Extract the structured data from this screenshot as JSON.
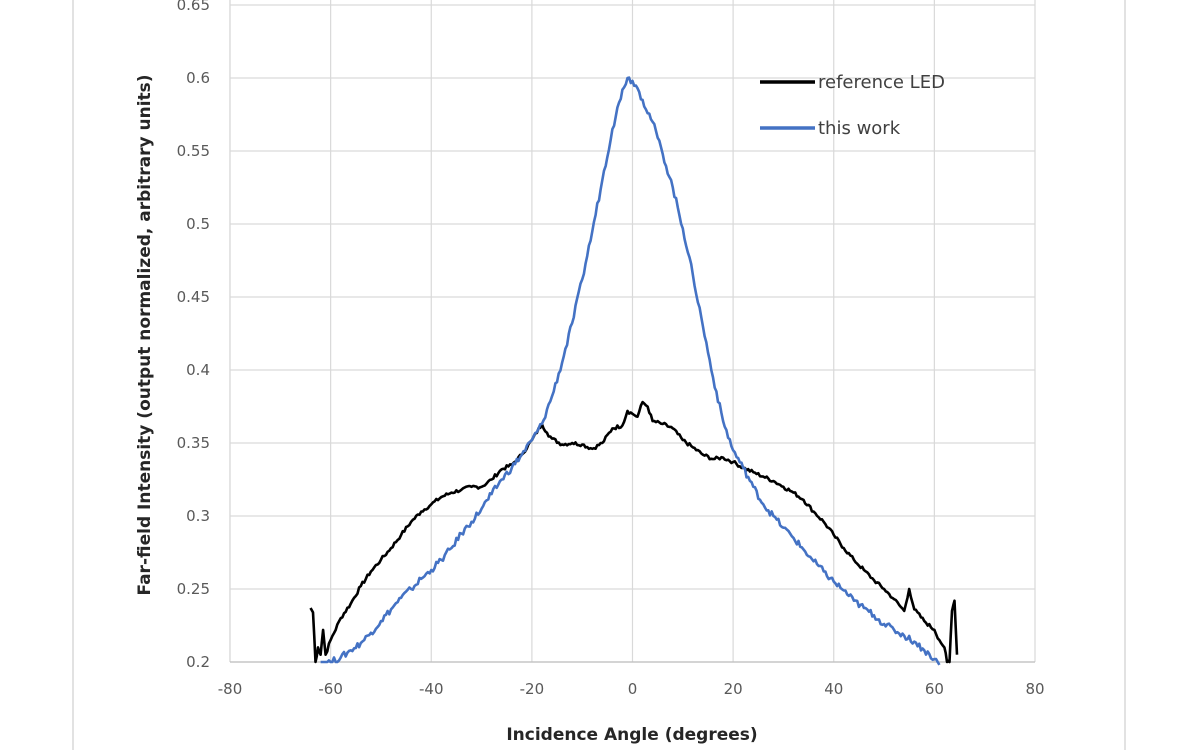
{
  "chart_data": {
    "type": "line",
    "title": "",
    "xlabel": "Incidence Angle (degrees)",
    "ylabel": "Far-field Intensity (output normalized, arbitrary units)",
    "xlim": [
      -80,
      80
    ],
    "ylim": [
      0.2,
      0.65
    ],
    "xticks": [
      "-80",
      "-60",
      "-40",
      "-20",
      "0",
      "20",
      "40",
      "60",
      "80"
    ],
    "yticks": [
      "0.2",
      "0.25",
      "0.3",
      "0.35",
      "0.4",
      "0.45",
      "0.5",
      "0.55",
      "0.6",
      "0.65"
    ],
    "grid": true,
    "legend_position": "top-right",
    "series": [
      {
        "name": "reference LED",
        "color": "#000000",
        "x": [
          -64,
          -63.5,
          -63,
          -62.5,
          -62,
          -61.5,
          -61,
          -60,
          -58,
          -56,
          -54,
          -52,
          -50,
          -48,
          -46,
          -44,
          -42,
          -40,
          -38,
          -36,
          -34,
          -32,
          -30,
          -28,
          -26,
          -24,
          -22,
          -20,
          -18,
          -17,
          -16,
          -14,
          -12,
          -10,
          -8,
          -6,
          -4,
          -2,
          -1,
          0,
          1,
          2,
          3,
          4,
          6,
          8,
          10,
          12,
          14,
          16,
          18,
          20,
          22,
          24,
          26,
          28,
          30,
          32,
          34,
          36,
          38,
          40,
          42,
          44,
          46,
          48,
          50,
          52,
          54,
          55,
          56,
          58,
          60,
          61,
          62,
          62.5,
          63,
          63.5,
          64,
          64.5
        ],
        "y": [
          0.237,
          0.234,
          0.2,
          0.21,
          0.205,
          0.222,
          0.205,
          0.215,
          0.23,
          0.24,
          0.252,
          0.262,
          0.27,
          0.278,
          0.287,
          0.296,
          0.303,
          0.308,
          0.313,
          0.316,
          0.318,
          0.32,
          0.32,
          0.325,
          0.332,
          0.335,
          0.342,
          0.352,
          0.363,
          0.357,
          0.353,
          0.349,
          0.35,
          0.349,
          0.346,
          0.35,
          0.36,
          0.362,
          0.372,
          0.37,
          0.368,
          0.378,
          0.375,
          0.365,
          0.363,
          0.36,
          0.352,
          0.347,
          0.342,
          0.339,
          0.34,
          0.337,
          0.333,
          0.33,
          0.327,
          0.324,
          0.32,
          0.316,
          0.311,
          0.303,
          0.296,
          0.287,
          0.278,
          0.27,
          0.263,
          0.256,
          0.25,
          0.243,
          0.235,
          0.25,
          0.236,
          0.228,
          0.222,
          0.215,
          0.21,
          0.2,
          0.2,
          0.235,
          0.242,
          0.205
        ]
      },
      {
        "name": "this work",
        "color": "#4472C4",
        "x": [
          -62,
          -60,
          -58,
          -56,
          -54,
          -52,
          -50,
          -48,
          -46,
          -44,
          -42,
          -40,
          -38,
          -36,
          -34,
          -32,
          -30,
          -28,
          -26,
          -24,
          -22,
          -20,
          -18,
          -16,
          -14,
          -12,
          -10,
          -8,
          -6,
          -4,
          -2,
          -1,
          0,
          1,
          2,
          4,
          6,
          8,
          10,
          12,
          14,
          16,
          18,
          20,
          22,
          24,
          26,
          28,
          30,
          32,
          34,
          36,
          38,
          40,
          42,
          44,
          46,
          48,
          50,
          52,
          54,
          56,
          58,
          60,
          61
        ],
        "y": [
          0.2,
          0.2,
          0.203,
          0.208,
          0.213,
          0.22,
          0.228,
          0.236,
          0.244,
          0.25,
          0.257,
          0.263,
          0.27,
          0.278,
          0.288,
          0.296,
          0.305,
          0.315,
          0.325,
          0.333,
          0.342,
          0.352,
          0.363,
          0.382,
          0.405,
          0.432,
          0.462,
          0.495,
          0.53,
          0.565,
          0.592,
          0.6,
          0.598,
          0.593,
          0.585,
          0.57,
          0.548,
          0.525,
          0.497,
          0.465,
          0.43,
          0.395,
          0.365,
          0.345,
          0.333,
          0.32,
          0.308,
          0.3,
          0.292,
          0.285,
          0.277,
          0.269,
          0.262,
          0.255,
          0.249,
          0.242,
          0.237,
          0.232,
          0.226,
          0.222,
          0.218,
          0.214,
          0.208,
          0.202,
          0.198
        ]
      }
    ]
  }
}
